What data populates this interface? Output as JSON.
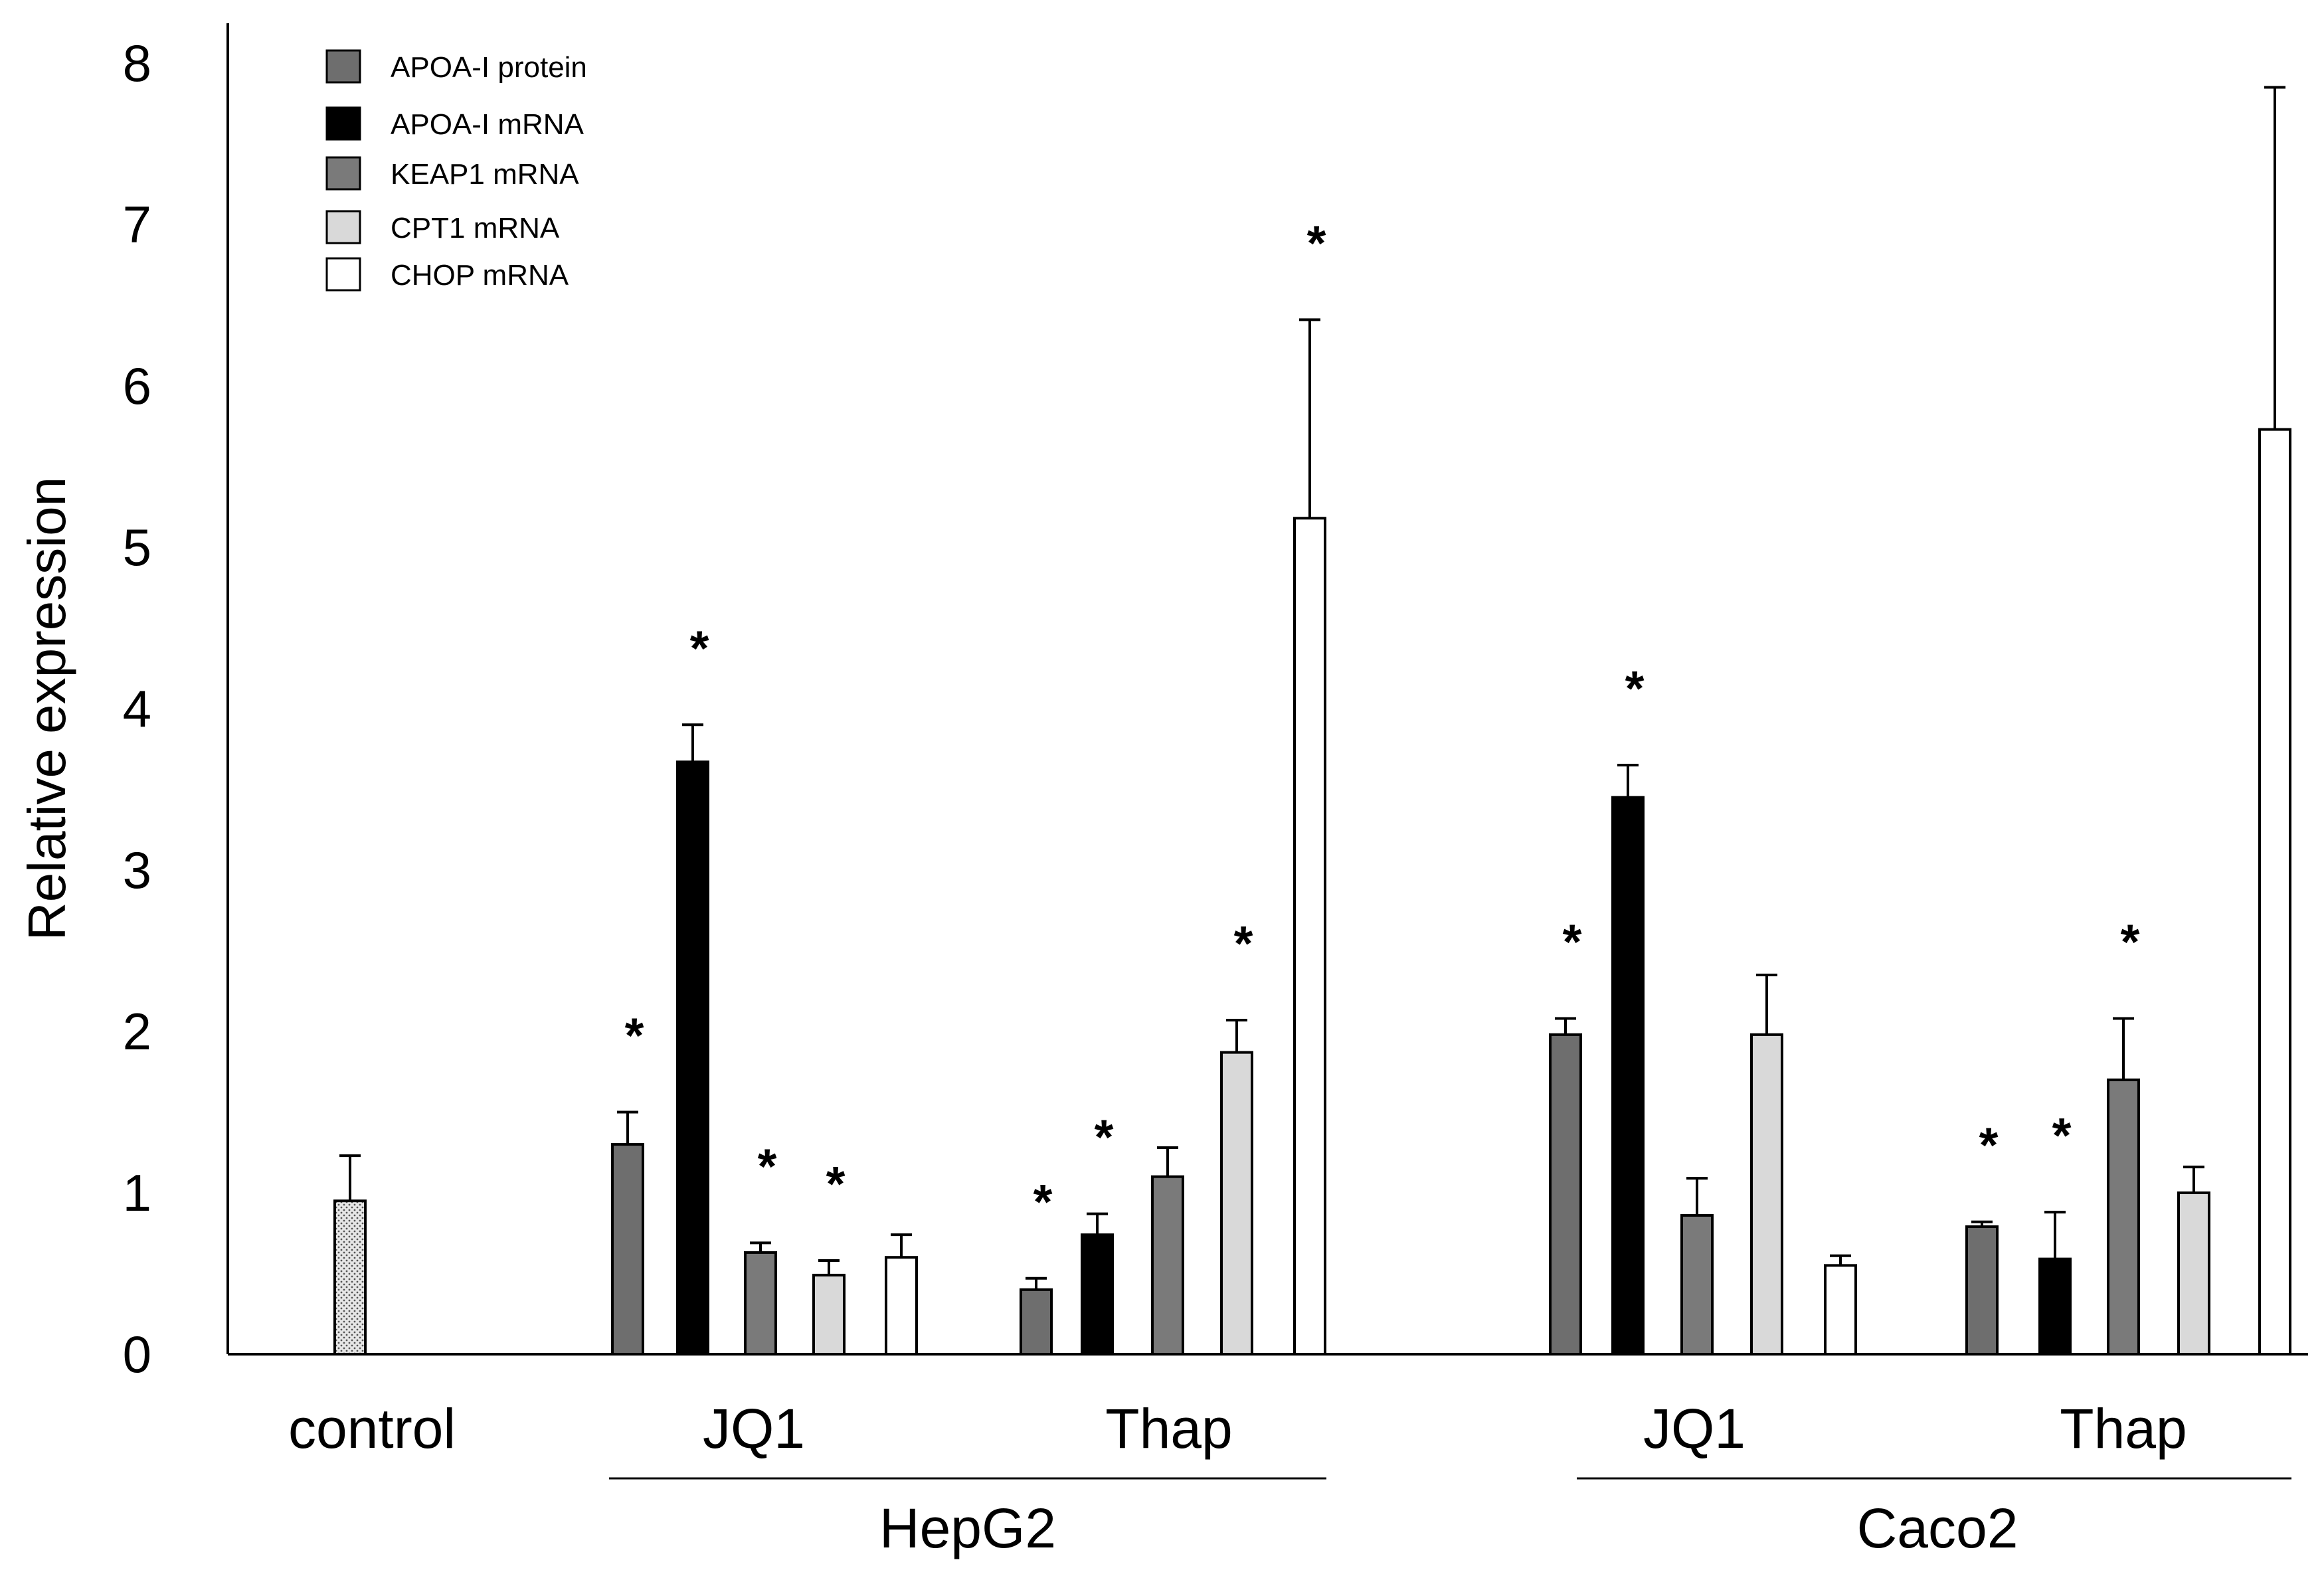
{
  "chart_data": {
    "type": "bar",
    "title": "",
    "ylabel": "Relative expression",
    "xlabel": "",
    "ylim": [
      0,
      8
    ],
    "yticks": [
      0,
      1,
      2,
      3,
      4,
      5,
      6,
      7,
      8
    ],
    "grid": false,
    "legend_position": "top-left",
    "series_styles": [
      {
        "name": "APOA-I protein",
        "color": "#6e6e6e",
        "pattern": "solid"
      },
      {
        "name": "APOA-I mRNA",
        "color": "#000000",
        "pattern": "solid"
      },
      {
        "name": "KEAP1 mRNA",
        "color": "#7a7a7a",
        "pattern": "solid"
      },
      {
        "name": "CPT1 mRNA",
        "color": "#d9d9d9",
        "pattern": "solid"
      },
      {
        "name": "CHOP mRNA",
        "color": "#ffffff",
        "pattern": "solid"
      }
    ],
    "groups": [
      {
        "label": "control",
        "bars": [
          {
            "series": "control",
            "value": 0.95,
            "error": 0.28,
            "star": false,
            "color": "#d0d0d0",
            "pattern": "dots"
          }
        ]
      },
      {
        "label": "JQ1",
        "parent": "HepG2",
        "bars": [
          {
            "series": "APOA-I protein",
            "value": 1.3,
            "error": 0.2,
            "star": true
          },
          {
            "series": "APOA-I mRNA",
            "value": 3.67,
            "error": 0.23,
            "star": true
          },
          {
            "series": "KEAP1 mRNA",
            "value": 0.63,
            "error": 0.06,
            "star": true
          },
          {
            "series": "CPT1 mRNA",
            "value": 0.49,
            "error": 0.09,
            "star": true
          },
          {
            "series": "CHOP mRNA",
            "value": 0.6,
            "error": 0.14,
            "star": false
          }
        ]
      },
      {
        "label": "Thap",
        "parent": "HepG2",
        "bars": [
          {
            "series": "APOA-I protein",
            "value": 0.4,
            "error": 0.07,
            "star": true
          },
          {
            "series": "APOA-I mRNA",
            "value": 0.74,
            "error": 0.13,
            "star": true
          },
          {
            "series": "KEAP1 mRNA",
            "value": 1.1,
            "error": 0.18,
            "star": false
          },
          {
            "series": "CPT1 mRNA",
            "value": 1.87,
            "error": 0.2,
            "star": true
          },
          {
            "series": "CHOP mRNA",
            "value": 5.18,
            "error": 1.23,
            "star": true
          }
        ]
      },
      {
        "label": "JQ1",
        "parent": "Caco2",
        "bars": [
          {
            "series": "APOA-I protein",
            "value": 1.98,
            "error": 0.1,
            "star": true
          },
          {
            "series": "APOA-I mRNA",
            "value": 3.45,
            "error": 0.2,
            "star": true
          },
          {
            "series": "KEAP1 mRNA",
            "value": 0.86,
            "error": 0.23,
            "star": false
          },
          {
            "series": "CPT1 mRNA",
            "value": 1.98,
            "error": 0.37,
            "star": false
          },
          {
            "series": "CHOP mRNA",
            "value": 0.55,
            "error": 0.06,
            "star": false
          }
        ]
      },
      {
        "label": "Thap",
        "parent": "Caco2",
        "bars": [
          {
            "series": "APOA-I protein",
            "value": 0.79,
            "error": 0.03,
            "star": true
          },
          {
            "series": "APOA-I mRNA",
            "value": 0.59,
            "error": 0.29,
            "star": true
          },
          {
            "series": "KEAP1 mRNA",
            "value": 1.7,
            "error": 0.38,
            "star": true
          },
          {
            "series": "CPT1 mRNA",
            "value": 1.0,
            "error": 0.16,
            "star": false
          },
          {
            "series": "CHOP mRNA",
            "value": 5.73,
            "error": 2.12,
            "star": false
          }
        ]
      }
    ],
    "parent_groups": [
      "HepG2",
      "Caco2"
    ],
    "star_symbol": "*"
  }
}
